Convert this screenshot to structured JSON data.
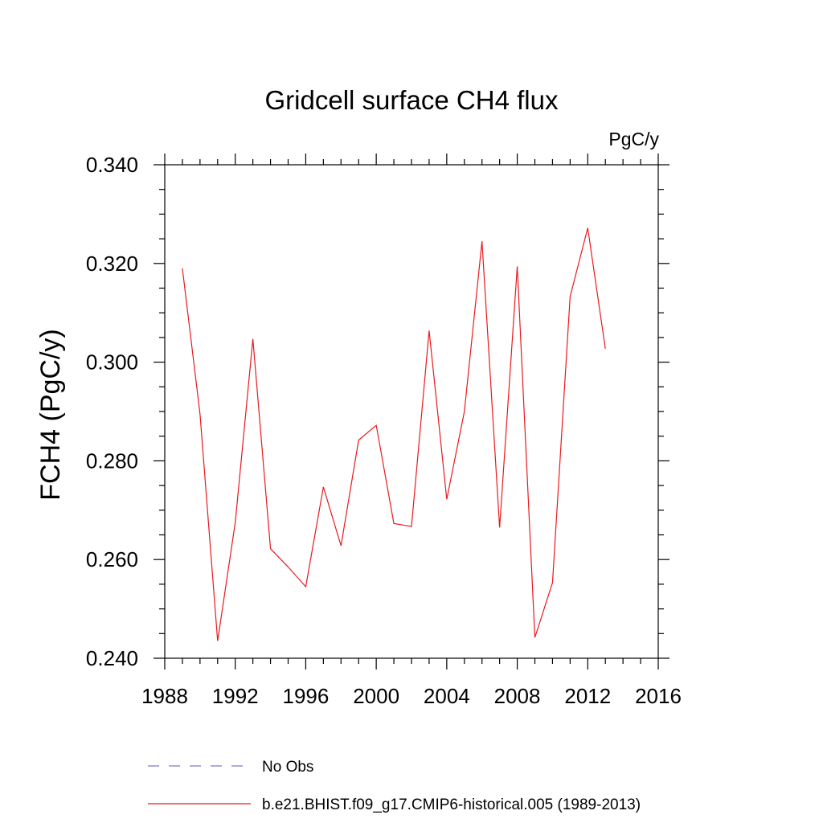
{
  "chart_data": {
    "type": "line",
    "title": "Gridcell surface CH4 flux",
    "units_label": "PgC/y",
    "ylabel": "FCH4  (PgC/y)",
    "xlabel": "",
    "xlim": [
      1988,
      2016
    ],
    "ylim": [
      0.24,
      0.34
    ],
    "x_ticks": [
      1988,
      1992,
      1996,
      2000,
      2004,
      2008,
      2012,
      2016
    ],
    "x_tick_labels": [
      "1988",
      "1992",
      "1996",
      "2000",
      "2004",
      "2008",
      "2012",
      "2016"
    ],
    "y_ticks": [
      0.24,
      0.26,
      0.28,
      0.3,
      0.32,
      0.34
    ],
    "y_tick_labels": [
      "0.240",
      "0.260",
      "0.280",
      "0.300",
      "0.320",
      "0.340"
    ],
    "grid": false,
    "legend_position": "bottom",
    "series": [
      {
        "name": "No Obs",
        "color": "#7b7bc8",
        "style": "dashed",
        "x": [],
        "values": []
      },
      {
        "name": "b.e21.BHIST.f09_g17.CMIP6-historical.005 (1989-2013)",
        "color": "#e8191e",
        "style": "solid",
        "x": [
          1989,
          1990,
          1991,
          1992,
          1993,
          1994,
          1995,
          1996,
          1997,
          1998,
          1999,
          2000,
          2001,
          2002,
          2003,
          2004,
          2005,
          2006,
          2007,
          2008,
          2009,
          2010,
          2011,
          2012,
          2013
        ],
        "values": [
          0.319,
          0.2895,
          0.2435,
          0.2675,
          0.3047,
          0.2622,
          0.2585,
          0.2545,
          0.2747,
          0.2628,
          0.2842,
          0.2872,
          0.2673,
          0.2667,
          0.3064,
          0.2722,
          0.29,
          0.3245,
          0.2665,
          0.3194,
          0.2442,
          0.2553,
          0.3133,
          0.3272,
          0.3027
        ]
      }
    ]
  }
}
